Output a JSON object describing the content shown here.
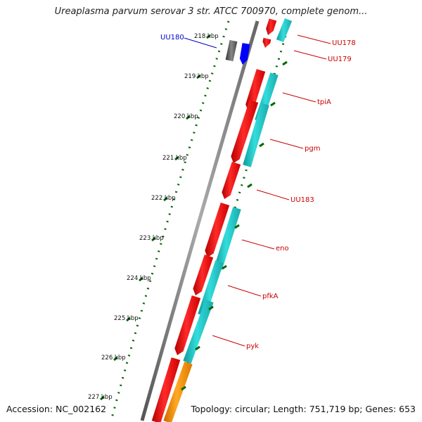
{
  "title": "Ureaplasma parvum serovar 3 str. ATCC 700970, complete genom...",
  "footer": {
    "accession": "Accession: NC_002162",
    "summary": "Topology: circular; Length: 751,719 bp; Genes: 653"
  },
  "ticks": [
    "218 kbp",
    "219 kbp",
    "220 kbp",
    "221 kbp",
    "222 kbp",
    "223 kbp",
    "224 kbp",
    "225 kbp",
    "226 kbp",
    "227 kbp"
  ],
  "gene_labels": [
    {
      "text": "UU180",
      "color": "#0000cc"
    },
    {
      "text": "UU178",
      "color": "#cc0000"
    },
    {
      "text": "UU179",
      "color": "#cc0000"
    },
    {
      "text": "tpiA",
      "color": "#cc0000"
    },
    {
      "text": "pgm",
      "color": "#cc0000"
    },
    {
      "text": "UU183",
      "color": "#cc0000"
    },
    {
      "text": "eno",
      "color": "#cc0000"
    },
    {
      "text": "pfkA",
      "color": "#cc0000"
    },
    {
      "text": "pyk",
      "color": "#cc0000"
    }
  ],
  "colors": {
    "cds": "#ff1a1a",
    "cds_cyan": "#22cccc",
    "rna_orange": "#ff9900",
    "uu180_blue": "#0000ff",
    "uu180_grey": "#555555",
    "backbone": "#777777",
    "tick_green": "#006600"
  }
}
